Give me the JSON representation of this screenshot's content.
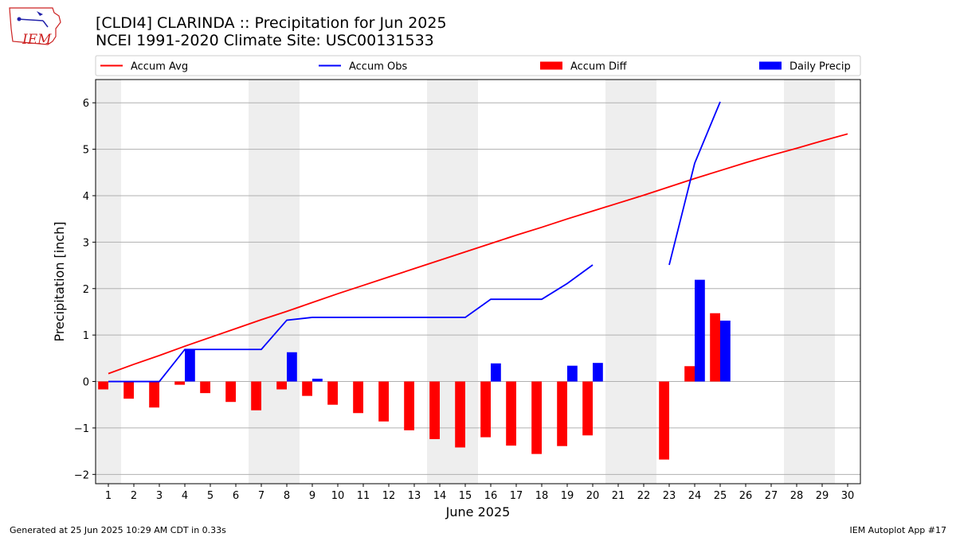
{
  "header": {
    "title_line1": "[CLDI4] CLARINDA :: Precipitation for Jun 2025",
    "title_line2": "NCEI 1991-2020 Climate Site: USC00131533",
    "logo_text": "IEM"
  },
  "footer": {
    "generated": "Generated at 25 Jun 2025 10:29 AM CDT in 0.33s",
    "app": "IEM Autoplot App #17"
  },
  "colors": {
    "avg": "#ff0000",
    "obs": "#0000ff",
    "diff": "#ff0000",
    "daily": "#0000ff",
    "weekend_band": "#eeeeee",
    "grid": "#b0b0b0"
  },
  "chart_data": {
    "type": "bar",
    "title": "[CLDI4] CLARINDA :: Precipitation for Jun 2025",
    "xlabel": "June 2025",
    "ylabel": "Precipitation [inch]",
    "xlim": [
      0.5,
      30.5
    ],
    "ylim": [
      -2.2,
      6.5
    ],
    "yticks": [
      -2,
      -1,
      0,
      1,
      2,
      3,
      4,
      5,
      6
    ],
    "ytick_labels": [
      "−2",
      "−1",
      "0",
      "1",
      "2",
      "3",
      "4",
      "5",
      "6"
    ],
    "x": [
      1,
      2,
      3,
      4,
      5,
      6,
      7,
      8,
      9,
      10,
      11,
      12,
      13,
      14,
      15,
      16,
      17,
      18,
      19,
      20,
      21,
      22,
      23,
      24,
      25,
      26,
      27,
      28,
      29,
      30
    ],
    "grid": "horizontal",
    "legend_position": "top",
    "shaded_day_ranges": [
      [
        0.5,
        1.5
      ],
      [
        6.5,
        8.5
      ],
      [
        13.5,
        15.5
      ],
      [
        20.5,
        22.5
      ],
      [
        27.5,
        29.5
      ]
    ],
    "legend": [
      {
        "label": "Accum Avg",
        "kind": "line",
        "color": "#ff0000"
      },
      {
        "label": "Accum Obs",
        "kind": "line",
        "color": "#0000ff"
      },
      {
        "label": "Accum Diff",
        "kind": "bar",
        "color": "#ff0000"
      },
      {
        "label": "Daily Precip",
        "kind": "bar",
        "color": "#0000ff"
      }
    ],
    "series": [
      {
        "name": "Accum Avg",
        "type": "line",
        "x": [
          1,
          2,
          3,
          4,
          5,
          6,
          7,
          8,
          9,
          10,
          11,
          12,
          13,
          14,
          15,
          16,
          17,
          18,
          19,
          20,
          21,
          22,
          23,
          24,
          25,
          26,
          27,
          28,
          29,
          30
        ],
        "values": [
          0.17,
          0.37,
          0.56,
          0.76,
          0.95,
          1.14,
          1.33,
          1.51,
          1.7,
          1.89,
          2.07,
          2.25,
          2.43,
          2.61,
          2.79,
          2.97,
          3.15,
          3.32,
          3.5,
          3.67,
          3.84,
          4.01,
          4.19,
          4.37,
          4.54,
          4.71,
          4.87,
          5.02,
          5.18,
          5.33
        ]
      },
      {
        "name": "Accum Obs",
        "type": "line",
        "segments": [
          {
            "x": [
              1,
              2,
              3,
              4,
              5,
              6,
              7,
              8,
              9,
              10,
              11,
              12,
              13,
              14,
              15,
              16,
              17,
              18,
              19,
              20
            ],
            "values": [
              0,
              0,
              0,
              0.69,
              0.69,
              0.69,
              0.69,
              1.32,
              1.38,
              1.38,
              1.38,
              1.38,
              1.38,
              1.38,
              1.38,
              1.77,
              1.77,
              1.77,
              2.11,
              2.51
            ]
          },
          {
            "x": [
              23,
              24,
              25
            ],
            "values": [
              2.51,
              4.7,
              6.02
            ]
          }
        ]
      },
      {
        "name": "Accum Diff",
        "type": "bar",
        "x": [
          1,
          2,
          3,
          4,
          5,
          6,
          7,
          8,
          9,
          10,
          11,
          12,
          13,
          14,
          15,
          16,
          17,
          18,
          19,
          20,
          23,
          24,
          25
        ],
        "values": [
          -0.17,
          -0.37,
          -0.56,
          -0.07,
          -0.25,
          -0.44,
          -0.62,
          -0.17,
          -0.31,
          -0.5,
          -0.68,
          -0.86,
          -1.05,
          -1.24,
          -1.42,
          -1.2,
          -1.38,
          -1.56,
          -1.39,
          -1.16,
          -1.68,
          0.33,
          1.47
        ]
      },
      {
        "name": "Daily Precip",
        "type": "bar",
        "x": [
          4,
          8,
          9,
          16,
          19,
          20,
          24,
          25
        ],
        "values": [
          0.69,
          0.63,
          0.06,
          0.39,
          0.34,
          0.4,
          2.19,
          1.31
        ]
      }
    ]
  }
}
